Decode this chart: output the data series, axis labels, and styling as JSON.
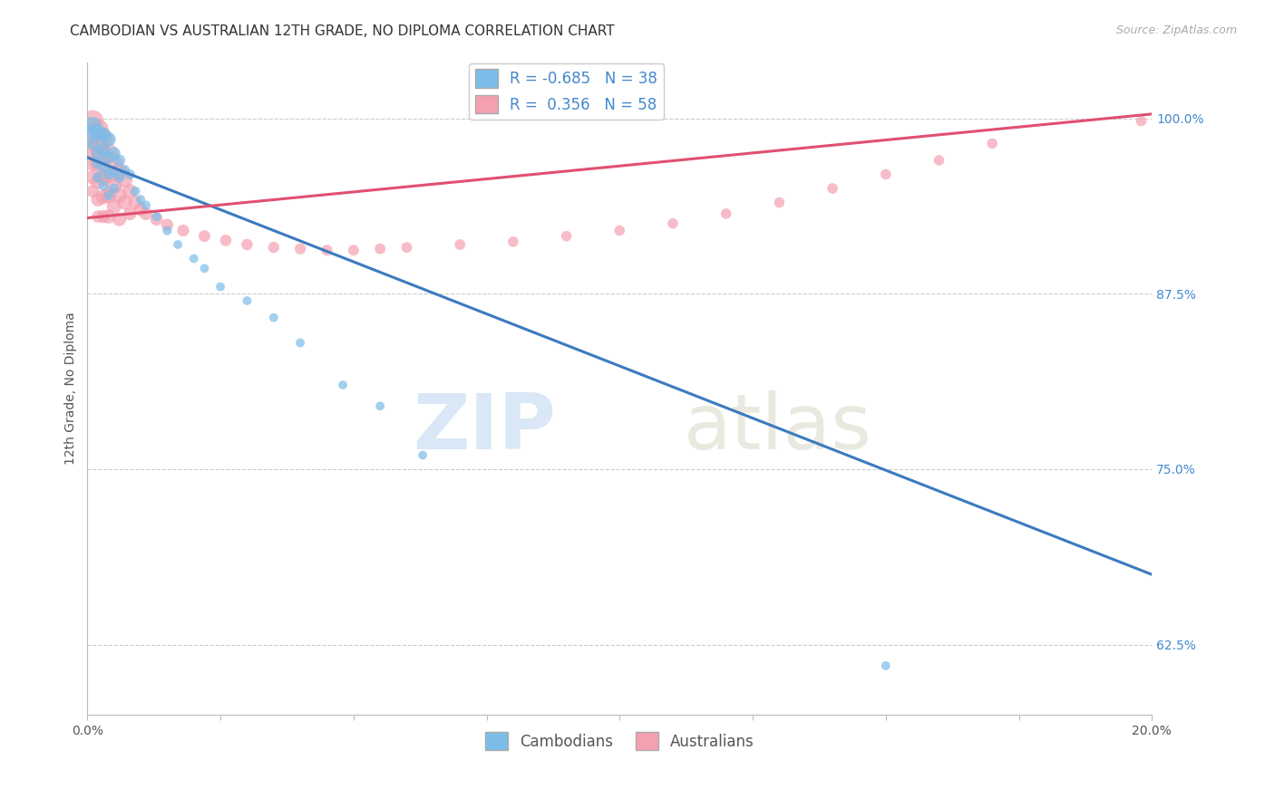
{
  "title": "CAMBODIAN VS AUSTRALIAN 12TH GRADE, NO DIPLOMA CORRELATION CHART",
  "source": "Source: ZipAtlas.com",
  "ylabel": "12th Grade, No Diploma",
  "xlim": [
    0.0,
    0.2
  ],
  "ylim": [
    0.575,
    1.04
  ],
  "xticks": [
    0.0,
    0.025,
    0.05,
    0.075,
    0.1,
    0.125,
    0.15,
    0.175,
    0.2
  ],
  "xticklabels": [
    "0.0%",
    "",
    "",
    "",
    "",
    "",
    "",
    "",
    "20.0%"
  ],
  "yticks": [
    0.625,
    0.75,
    0.875,
    1.0
  ],
  "yticklabels": [
    "62.5%",
    "75.0%",
    "87.5%",
    "100.0%"
  ],
  "legend_cambodian": "R = -0.685   N = 38",
  "legend_australian": "R =  0.356   N = 58",
  "cambodian_color": "#7bbde8",
  "australian_color": "#f4a0b0",
  "cambodian_line_color": "#3b7bbf",
  "australian_line_color": "#e05070",
  "background_color": "#ffffff",
  "grid_color": "#cccccc",
  "title_fontsize": 11,
  "axis_label_fontsize": 10,
  "tick_fontsize": 10,
  "legend_fontsize": 12,
  "source_fontsize": 9,
  "cambodian_line_x0": 0.0,
  "cambodian_line_y0": 0.972,
  "cambodian_line_x1": 0.2,
  "cambodian_line_y1": 0.675,
  "australian_line_x0": 0.0,
  "australian_line_y0": 0.929,
  "australian_line_x1": 0.2,
  "australian_line_y1": 1.003,
  "cambodian_pts": [
    [
      0.001,
      0.995
    ],
    [
      0.001,
      0.99
    ],
    [
      0.001,
      0.982
    ],
    [
      0.002,
      0.99
    ],
    [
      0.002,
      0.975
    ],
    [
      0.002,
      0.968
    ],
    [
      0.002,
      0.958
    ],
    [
      0.003,
      0.988
    ],
    [
      0.003,
      0.978
    ],
    [
      0.003,
      0.965
    ],
    [
      0.003,
      0.952
    ],
    [
      0.004,
      0.985
    ],
    [
      0.004,
      0.972
    ],
    [
      0.004,
      0.96
    ],
    [
      0.004,
      0.945
    ],
    [
      0.005,
      0.975
    ],
    [
      0.005,
      0.962
    ],
    [
      0.005,
      0.95
    ],
    [
      0.006,
      0.97
    ],
    [
      0.006,
      0.958
    ],
    [
      0.007,
      0.963
    ],
    [
      0.008,
      0.96
    ],
    [
      0.009,
      0.948
    ],
    [
      0.01,
      0.942
    ],
    [
      0.011,
      0.938
    ],
    [
      0.013,
      0.93
    ],
    [
      0.015,
      0.92
    ],
    [
      0.017,
      0.91
    ],
    [
      0.02,
      0.9
    ],
    [
      0.022,
      0.893
    ],
    [
      0.025,
      0.88
    ],
    [
      0.03,
      0.87
    ],
    [
      0.035,
      0.858
    ],
    [
      0.04,
      0.84
    ],
    [
      0.048,
      0.81
    ],
    [
      0.055,
      0.795
    ],
    [
      0.063,
      0.76
    ],
    [
      0.15,
      0.61
    ]
  ],
  "australian_pts": [
    [
      0.001,
      0.998
    ],
    [
      0.001,
      0.988
    ],
    [
      0.001,
      0.978
    ],
    [
      0.001,
      0.968
    ],
    [
      0.001,
      0.958
    ],
    [
      0.001,
      0.948
    ],
    [
      0.002,
      0.992
    ],
    [
      0.002,
      0.98
    ],
    [
      0.002,
      0.968
    ],
    [
      0.002,
      0.955
    ],
    [
      0.002,
      0.942
    ],
    [
      0.002,
      0.93
    ],
    [
      0.003,
      0.985
    ],
    [
      0.003,
      0.972
    ],
    [
      0.003,
      0.958
    ],
    [
      0.003,
      0.944
    ],
    [
      0.003,
      0.93
    ],
    [
      0.004,
      0.975
    ],
    [
      0.004,
      0.96
    ],
    [
      0.004,
      0.945
    ],
    [
      0.004,
      0.93
    ],
    [
      0.005,
      0.968
    ],
    [
      0.005,
      0.952
    ],
    [
      0.005,
      0.937
    ],
    [
      0.006,
      0.962
    ],
    [
      0.006,
      0.945
    ],
    [
      0.006,
      0.928
    ],
    [
      0.007,
      0.956
    ],
    [
      0.007,
      0.94
    ],
    [
      0.008,
      0.948
    ],
    [
      0.008,
      0.932
    ],
    [
      0.009,
      0.94
    ],
    [
      0.01,
      0.935
    ],
    [
      0.011,
      0.932
    ],
    [
      0.013,
      0.928
    ],
    [
      0.015,
      0.924
    ],
    [
      0.018,
      0.92
    ],
    [
      0.022,
      0.916
    ],
    [
      0.026,
      0.913
    ],
    [
      0.03,
      0.91
    ],
    [
      0.035,
      0.908
    ],
    [
      0.04,
      0.907
    ],
    [
      0.045,
      0.906
    ],
    [
      0.05,
      0.906
    ],
    [
      0.055,
      0.907
    ],
    [
      0.06,
      0.908
    ],
    [
      0.07,
      0.91
    ],
    [
      0.08,
      0.912
    ],
    [
      0.09,
      0.916
    ],
    [
      0.1,
      0.92
    ],
    [
      0.11,
      0.925
    ],
    [
      0.12,
      0.932
    ],
    [
      0.13,
      0.94
    ],
    [
      0.14,
      0.95
    ],
    [
      0.15,
      0.96
    ],
    [
      0.16,
      0.97
    ],
    [
      0.17,
      0.982
    ],
    [
      0.198,
      0.998
    ]
  ],
  "cambodian_sizes": [
    180,
    140,
    100,
    160,
    120,
    90,
    70,
    150,
    110,
    85,
    65,
    130,
    95,
    75,
    60,
    105,
    80,
    65,
    90,
    75,
    70,
    65,
    60,
    55,
    55,
    55,
    55,
    50,
    50,
    50,
    50,
    50,
    50,
    50,
    50,
    50,
    50,
    50
  ],
  "australian_sizes": [
    300,
    250,
    200,
    160,
    130,
    100,
    280,
    230,
    185,
    150,
    120,
    95,
    260,
    210,
    170,
    140,
    110,
    230,
    190,
    155,
    125,
    200,
    165,
    135,
    175,
    145,
    118,
    155,
    128,
    135,
    110,
    120,
    110,
    105,
    100,
    95,
    90,
    88,
    85,
    82,
    80,
    78,
    76,
    75,
    74,
    73,
    72,
    71,
    70,
    70,
    70,
    70,
    70,
    70,
    70,
    70,
    70,
    70
  ]
}
